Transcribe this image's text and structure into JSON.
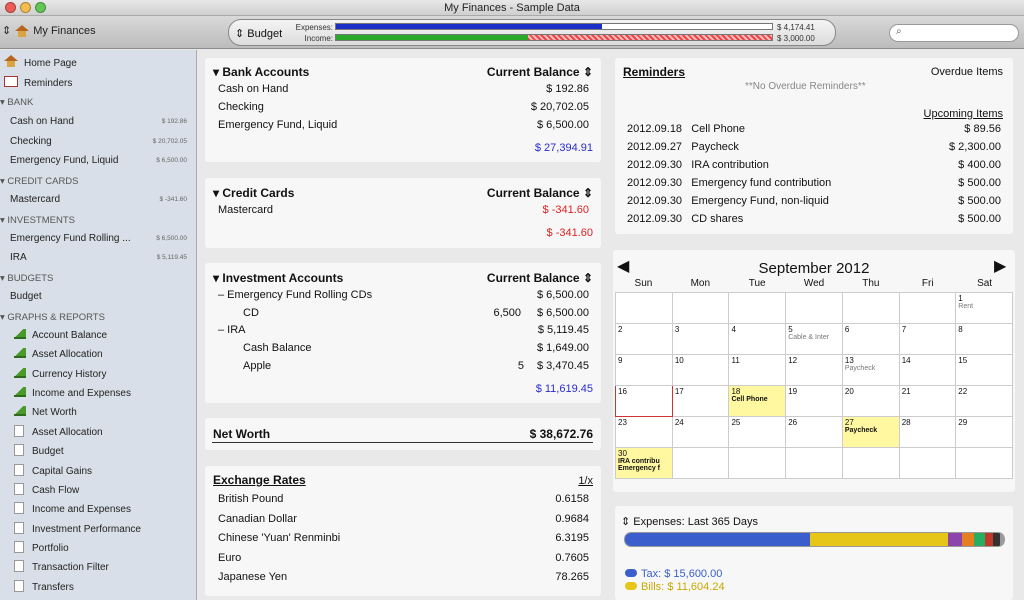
{
  "window": {
    "title": "My Finances - Sample Data"
  },
  "toolbar": {
    "account": "My Finances",
    "budget_label": "Budget",
    "expenses_label": "Expenses:",
    "income_label": "Income:",
    "expenses_amount": "$ 4,174.41",
    "income_amount": "$ 3,000.00",
    "expenses_fill": 0.61,
    "income_fill": 0.44,
    "income_over_fill": 0.56
  },
  "sidebar": {
    "home": "Home Page",
    "reminders": "Reminders",
    "bank_header": "BANK",
    "bank": [
      {
        "name": "Cash on Hand",
        "amt": "$ 192.86"
      },
      {
        "name": "Checking",
        "amt": "$ 20,702.05"
      },
      {
        "name": "Emergency Fund, Liquid",
        "amt": "$ 6,500.00"
      }
    ],
    "credit_header": "CREDIT CARDS",
    "credit": [
      {
        "name": "Mastercard",
        "amt": "$ -341.60"
      }
    ],
    "invest_header": "INVESTMENTS",
    "invest": [
      {
        "name": "Emergency Fund Rolling ...",
        "amt": "$ 6,500.00"
      },
      {
        "name": "IRA",
        "amt": "$ 5,119.45"
      }
    ],
    "budgets_header": "BUDGETS",
    "budget_item": "Budget",
    "graphs_header": "GRAPHS & REPORTS",
    "graphs": [
      "Account Balance",
      "Asset Allocation",
      "Currency History",
      "Income and Expenses",
      "Net Worth"
    ],
    "reports": [
      "Asset Allocation",
      "Budget",
      "Capital Gains",
      "Cash Flow",
      "Income and Expenses",
      "Investment Performance",
      "Portfolio",
      "Transaction Filter",
      "Transfers"
    ]
  },
  "bank": {
    "title": "Bank Accounts",
    "col": "Current Balance",
    "rows": [
      {
        "name": "Cash on Hand",
        "val": "$ 192.86"
      },
      {
        "name": "Checking",
        "val": "$ 20,702.05"
      },
      {
        "name": "Emergency Fund, Liquid",
        "val": "$ 6,500.00"
      }
    ],
    "total": "$ 27,394.91"
  },
  "credit": {
    "title": "Credit Cards",
    "col": "Current Balance",
    "rows": [
      {
        "name": "Mastercard",
        "val": "$ -341.60"
      }
    ],
    "total": "$ -341.60"
  },
  "invest": {
    "title": "Investment Accounts",
    "col": "Current Balance",
    "rows": [
      {
        "name": "–  Emergency Fund Rolling CDs",
        "val": "$ 6,500.00",
        "qty": ""
      },
      {
        "name": "CD",
        "val": "$ 6,500.00",
        "qty": "6,500"
      },
      {
        "name": "–  IRA",
        "val": "$ 5,119.45",
        "qty": ""
      },
      {
        "name": "Cash Balance",
        "val": "$ 1,649.00",
        "qty": ""
      },
      {
        "name": "Apple",
        "val": "$ 3,470.45",
        "qty": "5"
      }
    ],
    "total": "$ 11,619.45"
  },
  "networth": {
    "label": "Net Worth",
    "value": "$ 38,672.76"
  },
  "fx": {
    "title": "Exchange Rates",
    "col": "1/x",
    "rows": [
      {
        "name": "British Pound",
        "val": "0.6158"
      },
      {
        "name": "Canadian Dollar",
        "val": "0.9684"
      },
      {
        "name": "Chinese 'Yuan' Renminbi",
        "val": "6.3195"
      },
      {
        "name": "Euro",
        "val": "0.7605"
      },
      {
        "name": "Japanese Yen",
        "val": "78.265"
      }
    ]
  },
  "reminders": {
    "title": "Reminders",
    "overdue": "Overdue Items",
    "none": "**No Overdue Reminders**",
    "upcoming": "Upcoming Items",
    "rows": [
      {
        "date": "2012.09.18",
        "name": "Cell Phone",
        "amt": "$ 89.56"
      },
      {
        "date": "2012.09.27",
        "name": "Paycheck",
        "amt": "$ 2,300.00"
      },
      {
        "date": "2012.09.30",
        "name": "IRA contribution",
        "amt": "$ 400.00"
      },
      {
        "date": "2012.09.30",
        "name": "Emergency fund contribution",
        "amt": "$ 500.00"
      },
      {
        "date": "2012.09.30",
        "name": "Emergency Fund, non-liquid",
        "amt": "$ 500.00"
      },
      {
        "date": "2012.09.30",
        "name": "CD shares",
        "amt": "$ 500.00"
      }
    ]
  },
  "calendar": {
    "title": "September 2012",
    "days": [
      "Sun",
      "Mon",
      "Tue",
      "Wed",
      "Thu",
      "Fri",
      "Sat"
    ],
    "events": {
      "1": "Rent",
      "5": "Cable & Inter",
      "13": "Paycheck",
      "18": "Cell Phone",
      "27": "Paycheck",
      "30": "IRA contribu Emergency f"
    }
  },
  "expenses": {
    "title": "Expenses: Last 365 Days",
    "legend": [
      {
        "label": "Tax: $ 15,600.00",
        "color": "#3a5fcd"
      },
      {
        "label": "Bills: $ 11,604.24",
        "color": "#e6c619"
      }
    ],
    "segments": [
      {
        "color": "#3a5fcd",
        "value": 15600
      },
      {
        "color": "#e6c619",
        "value": 11604.24
      },
      {
        "color": "#8e44ad",
        "value": 1200
      },
      {
        "color": "#e67e22",
        "value": 1000
      },
      {
        "color": "#27ae60",
        "value": 900
      },
      {
        "color": "#c0392b",
        "value": 700
      },
      {
        "color": "#333333",
        "value": 600
      },
      {
        "color": "#999999",
        "value": 300
      }
    ]
  }
}
